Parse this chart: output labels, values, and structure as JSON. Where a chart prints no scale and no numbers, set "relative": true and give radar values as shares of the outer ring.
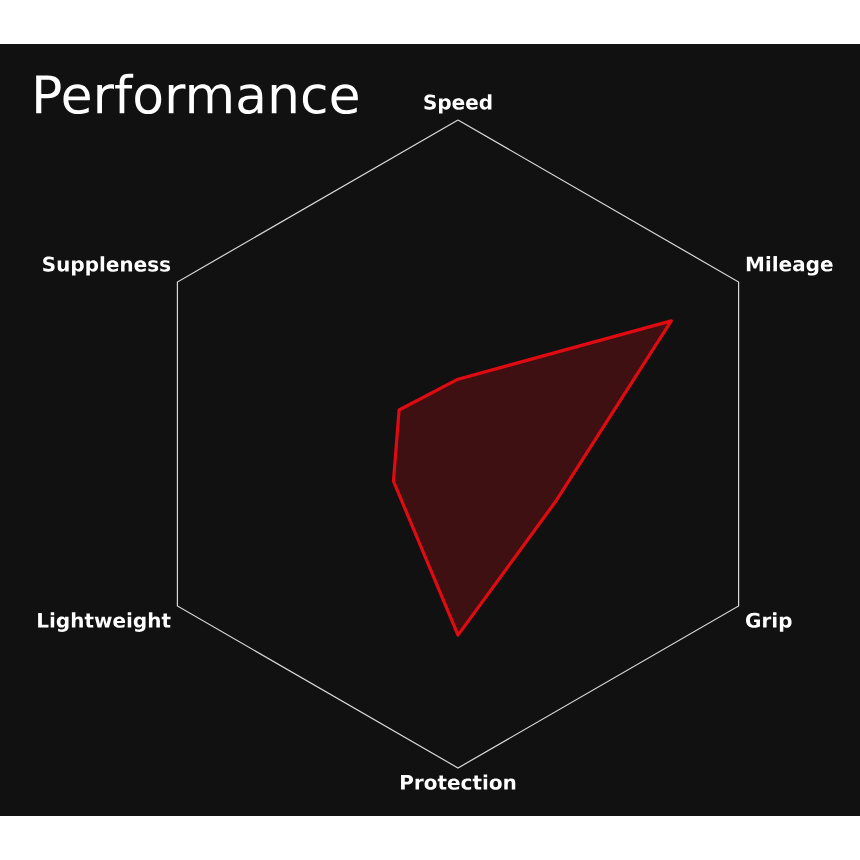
{
  "chart_data": {
    "type": "radar",
    "title": "Performance",
    "categories": [
      "Speed",
      "Mileage",
      "Grip",
      "Protection",
      "Lightweight",
      "Suppleness"
    ],
    "relative": true,
    "series": [
      {
        "color": "#e00b12",
        "values": [
          0.2,
          0.76,
          0.35,
          0.59,
          0.23,
          0.21
        ]
      }
    ]
  }
}
